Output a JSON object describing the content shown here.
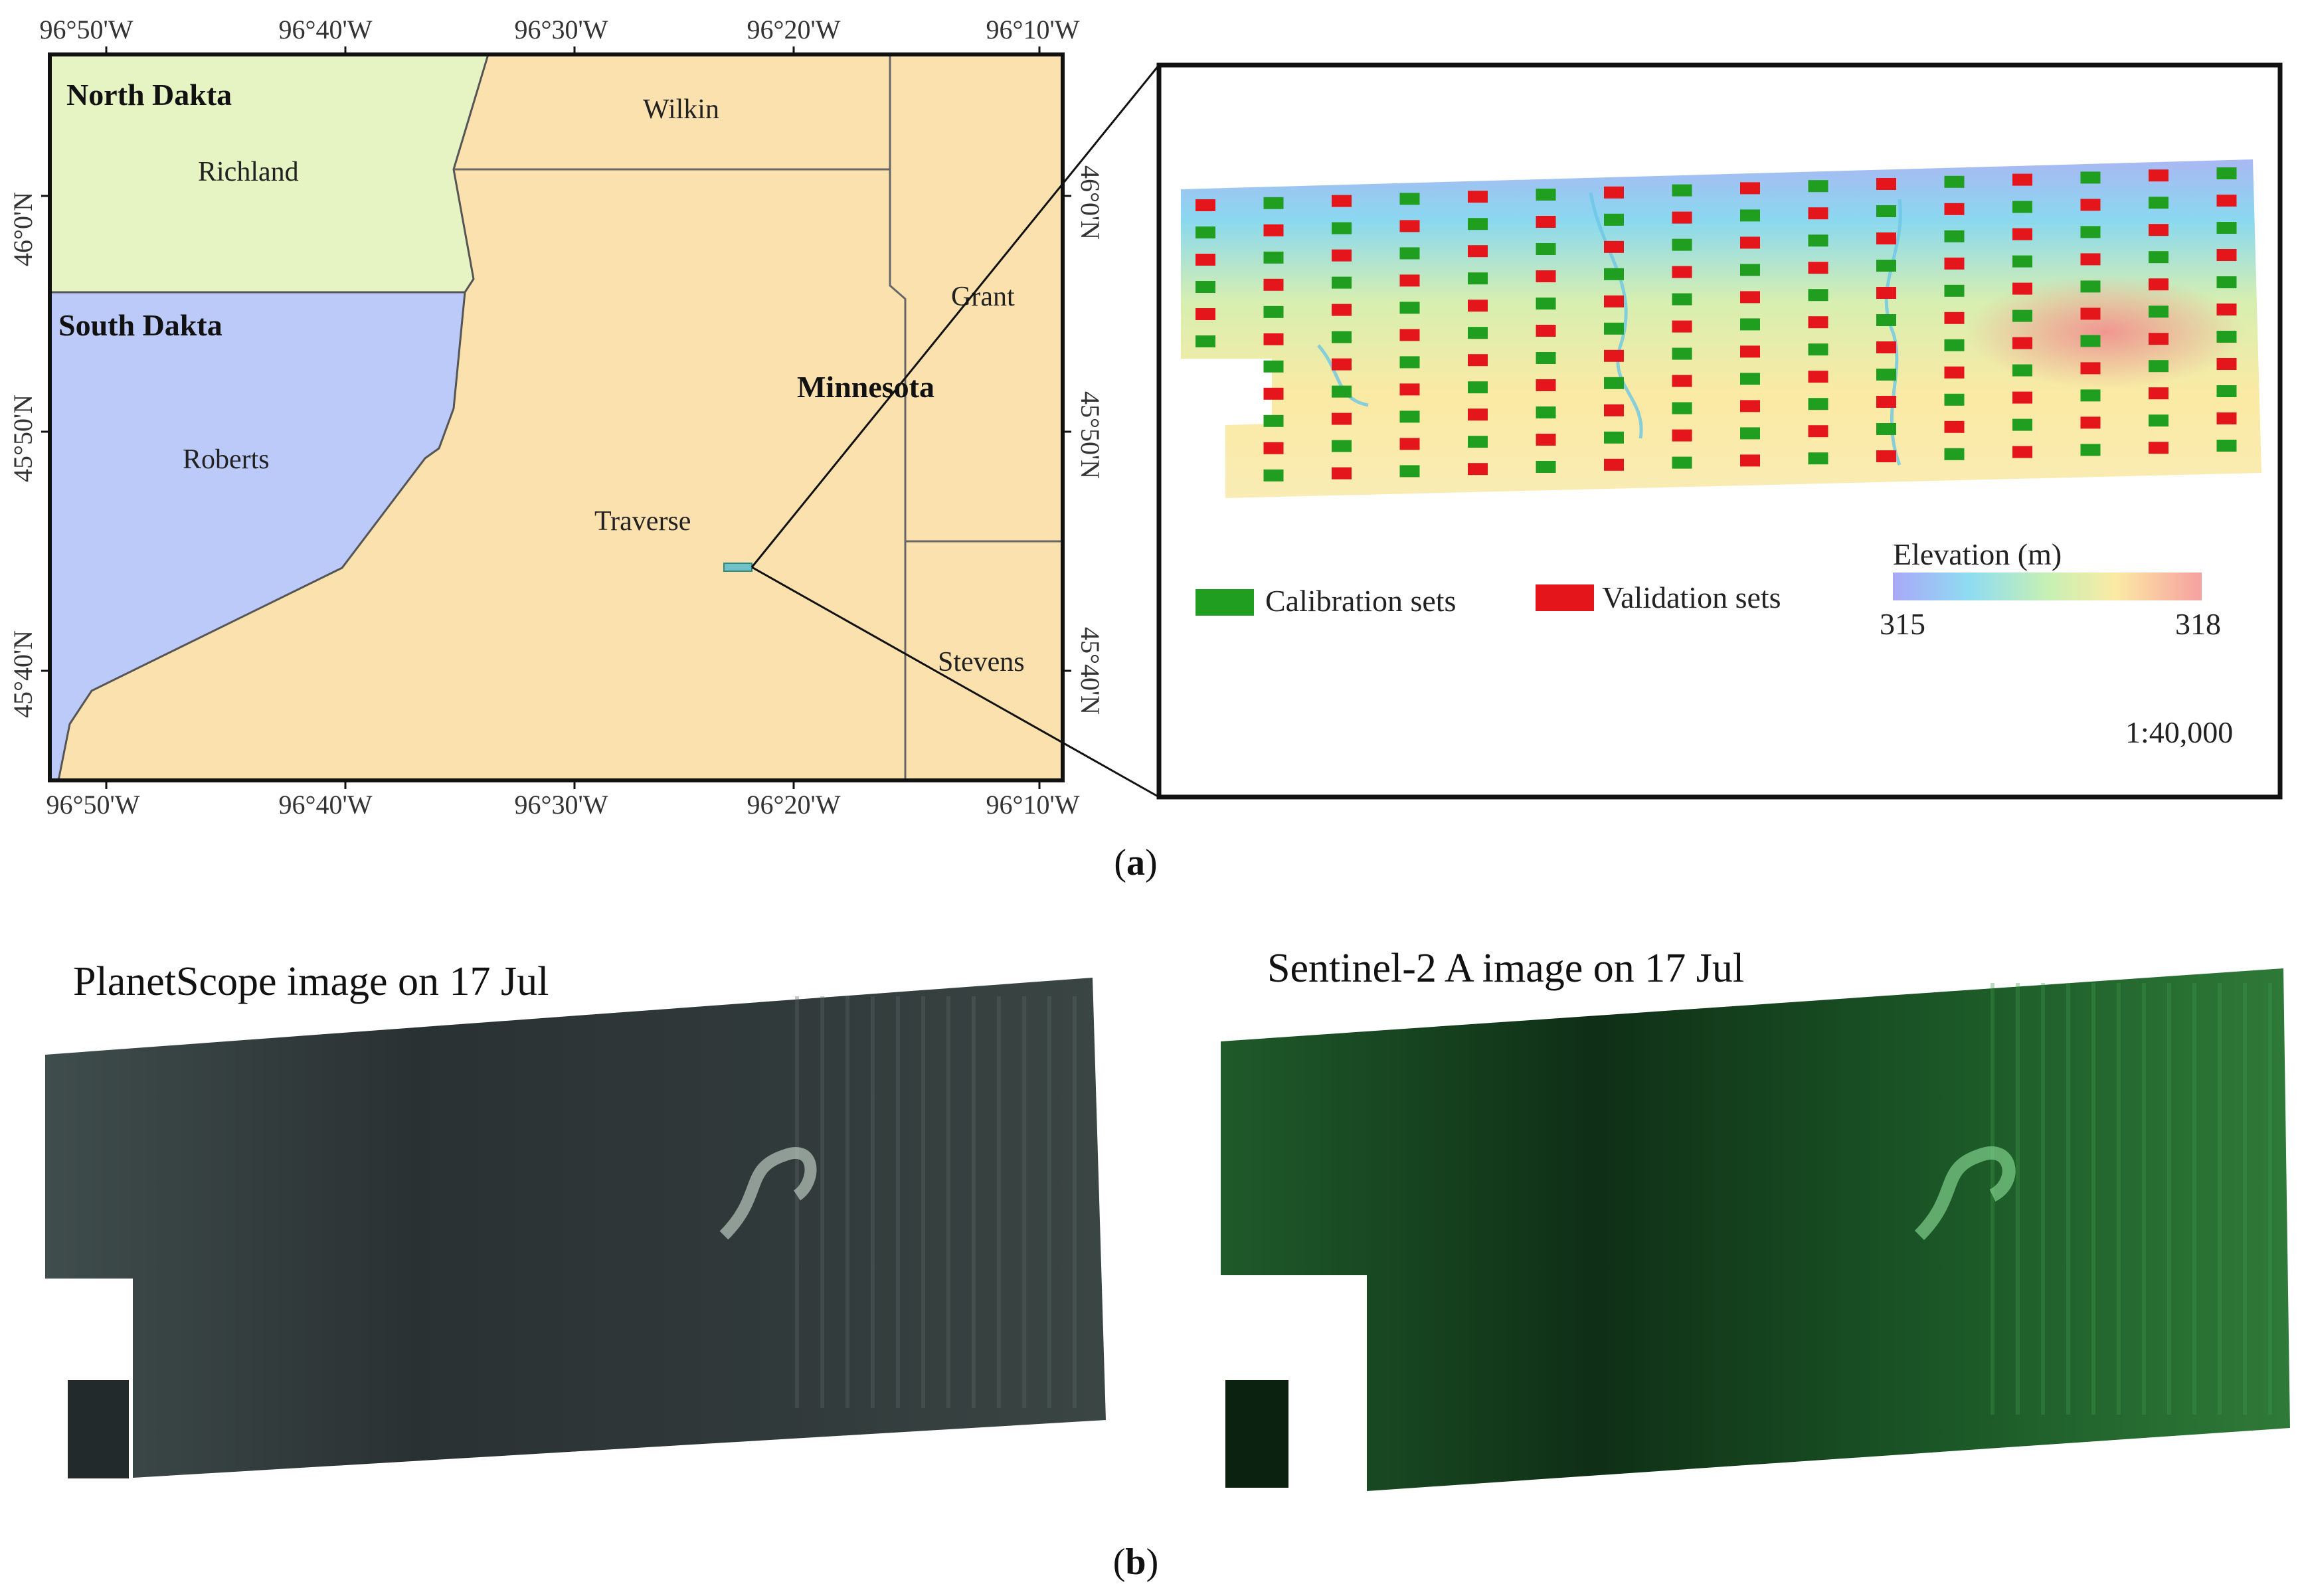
{
  "panel_a": {
    "caption_open": "(",
    "caption_letter": "a",
    "caption_close": ")",
    "lon_labels": [
      "96°50'W",
      "96°40'W",
      "96°30'W",
      "96°20'W",
      "96°10'W"
    ],
    "lat_labels": [
      "46°0'N",
      "45°50'N",
      "45°40'N"
    ],
    "states": {
      "north_dakota": "North Dakta",
      "south_dakota": "South Dakta",
      "minnesota": "Minnesota"
    },
    "counties": {
      "richland": "Richland",
      "wilkin": "Wilkin",
      "grant": "Grant",
      "roberts": "Roberts",
      "traverse": "Traverse",
      "stevens": "Stevens"
    },
    "colors": {
      "north_dakota": "#e6f3c3",
      "south_dakota": "#bccafa",
      "minnesota": "#fbe1ad",
      "calibration": "#1f9e1f",
      "validation": "#e4161c",
      "elev_low": "#a6a6f6",
      "elev_high": "#f7a3a3"
    },
    "inset": {
      "legend": {
        "calibration": "Calibration sets",
        "validation": "Validation sets"
      },
      "elevation_title": "Elevation (m)",
      "elevation_min": "315",
      "elevation_max": "318",
      "scale": "1:40,000"
    }
  },
  "panel_b": {
    "caption_open": "(",
    "caption_letter": "b",
    "caption_close": ")",
    "planetscope_title": "PlanetScope image on 17 Jul",
    "sentinel_title": "Sentinel-2 A image on 17 Jul"
  }
}
